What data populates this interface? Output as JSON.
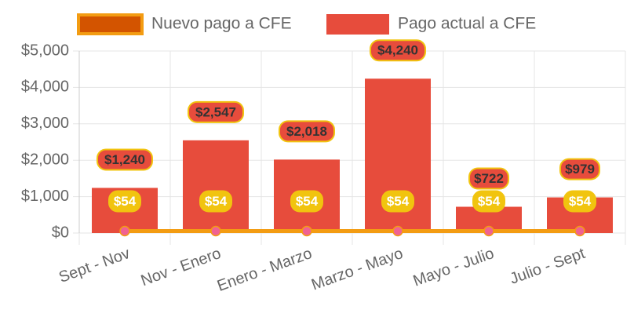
{
  "chart_data": {
    "type": "bar-line",
    "categories": [
      "Sept - Nov",
      "Nov - Enero",
      "Enero - Marzo",
      "Marzo - Mayo",
      "Mayo - Julio",
      "Julio - Sept"
    ],
    "series": [
      {
        "name": "Nuevo pago a CFE",
        "type": "line",
        "color": "#f39c12",
        "values": [
          54,
          54,
          54,
          54,
          54,
          54
        ],
        "value_labels": [
          "$54",
          "$54",
          "$54",
          "$54",
          "$54",
          "$54"
        ]
      },
      {
        "name": "Pago actual a CFE",
        "type": "bar",
        "color": "#e74c3c",
        "values": [
          1240,
          2547,
          2018,
          4240,
          722,
          979
        ],
        "value_labels": [
          "$1,240",
          "$2,547",
          "$2,018",
          "$4,240",
          "$722",
          "$979"
        ]
      }
    ],
    "ylim": [
      0,
      5000
    ],
    "yticks": [
      {
        "value": 0,
        "label": "$0"
      },
      {
        "value": 1000,
        "label": "$1,000"
      },
      {
        "value": 2000,
        "label": "$2,000"
      },
      {
        "value": 3000,
        "label": "$3,000"
      },
      {
        "value": 4000,
        "label": "$4,000"
      },
      {
        "value": 5000,
        "label": "$5,000"
      }
    ],
    "grid": true,
    "legend": "top"
  }
}
